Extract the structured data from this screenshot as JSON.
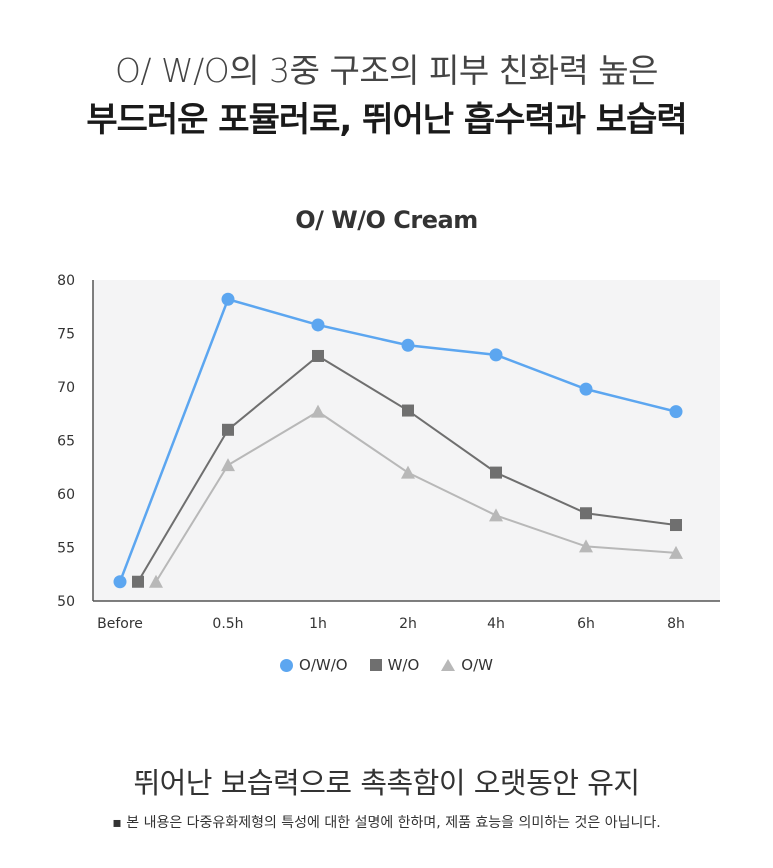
{
  "header": {
    "line1": "O/ W/O의 3중 구조의 피부 친화력 높은",
    "line2": "부드러운 포뮬러로, 뛰어난 흡수력과 보습력"
  },
  "chart_data": {
    "type": "line",
    "title": "O/ W/O Cream",
    "categories": [
      "Before",
      "0.5h",
      "1h",
      "2h",
      "4h",
      "6h",
      "8h"
    ],
    "ylim": [
      50,
      80
    ],
    "yticks": [
      50,
      55,
      60,
      65,
      70,
      75,
      80
    ],
    "grid": false,
    "legend_position": "bottom",
    "series": [
      {
        "name": "O/W/O",
        "marker": "circle",
        "color": "#5ca6f0",
        "values": [
          51.8,
          78.2,
          75.8,
          73.9,
          73.0,
          69.8,
          67.7
        ]
      },
      {
        "name": "W/O",
        "marker": "square",
        "color": "#6f6f6f",
        "values": [
          51.8,
          66.0,
          72.9,
          67.8,
          62.0,
          58.2,
          57.1
        ]
      },
      {
        "name": "O/W",
        "marker": "triangle",
        "color": "#b8b8b8",
        "values": [
          51.8,
          62.7,
          67.7,
          62.0,
          58.0,
          55.1,
          54.5
        ]
      }
    ]
  },
  "footer": {
    "headline": "뛰어난 보습력으로 촉촉함이 오랫동안 유지",
    "note": "▪ 본 내용은 다중유화제형의 특성에 대한 설명에 한하며, 제품 효능을 의미하는 것은 아닙니다."
  }
}
